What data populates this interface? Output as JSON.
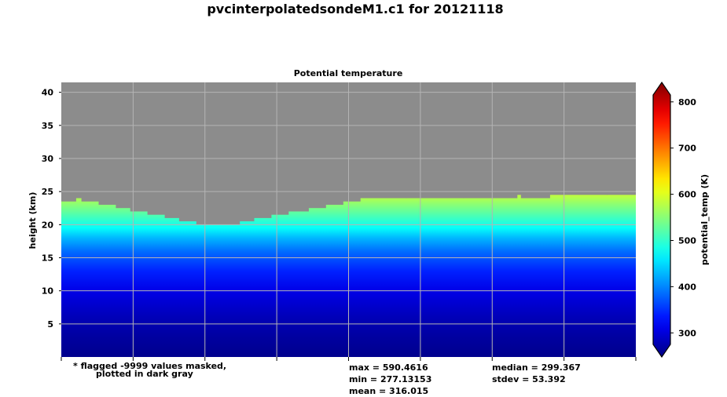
{
  "chart_data": {
    "type": "heatmap",
    "title": "pvcinterpolatedsondeM1.c1 for 20121118",
    "subtitle": "Potential temperature",
    "xlabel": "",
    "ylabel": "height (km)",
    "ylim": [
      0,
      41.5
    ],
    "y_ticks": [
      5,
      10,
      15,
      20,
      25,
      30,
      35,
      40
    ],
    "x_tick_count": 9,
    "grid": true,
    "masked_color": "#8c8c8c",
    "colorbar": {
      "label": "potential_temp (K)",
      "range": [
        275,
        815
      ],
      "ticks": [
        300,
        400,
        500,
        600,
        700,
        800
      ],
      "colormap": "jet",
      "extend": "both"
    },
    "masked_top_height_km": [
      23.5,
      24.0,
      23.5,
      23.0,
      22.5,
      22.0,
      21.5,
      21.0,
      20.5,
      20.0,
      20.0,
      20.5,
      21.0,
      21.5,
      22.0,
      22.5,
      23.0,
      23.5,
      24.0,
      24.0,
      24.0,
      24.0,
      24.0,
      24.0,
      24.0,
      24.5,
      24.5,
      24.5,
      24.5,
      24.5
    ],
    "masked_top_fraction_of_time": [
      0.0,
      0.025,
      0.035,
      0.065,
      0.095,
      0.12,
      0.15,
      0.18,
      0.205,
      0.235,
      0.255,
      0.31,
      0.335,
      0.365,
      0.395,
      0.43,
      0.46,
      0.49,
      0.52,
      0.6,
      0.7,
      0.75,
      0.8,
      0.85,
      0.9,
      0.793,
      0.85,
      0.9,
      0.95,
      1.0
    ],
    "profile_stops": [
      {
        "height_km": 0.0,
        "value": 282
      },
      {
        "height_km": 3.0,
        "value": 292
      },
      {
        "height_km": 6.0,
        "value": 305
      },
      {
        "height_km": 10.0,
        "value": 330
      },
      {
        "height_km": 13.0,
        "value": 360
      },
      {
        "height_km": 16.0,
        "value": 400
      },
      {
        "height_km": 18.0,
        "value": 440
      },
      {
        "height_km": 19.5,
        "value": 480
      },
      {
        "height_km": 21.0,
        "value": 510
      },
      {
        "height_km": 23.0,
        "value": 550
      },
      {
        "height_km": 24.5,
        "value": 580
      }
    ]
  },
  "notes": {
    "flagged_line1": "* flagged -9999 values masked,",
    "flagged_line2": "plotted in dark gray",
    "max": "max = 590.4616",
    "min": "min = 277.13153",
    "mean": "mean = 316.015",
    "median": "median = 299.367",
    "stdev": "stdev = 53.392"
  }
}
